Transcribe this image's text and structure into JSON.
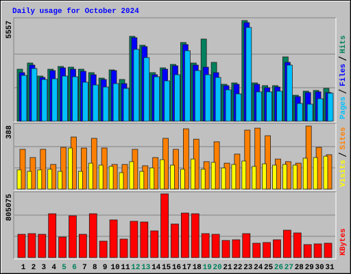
{
  "chart_data": [
    {
      "type": "bar",
      "title": "Daily usage for October 2024",
      "ylim": [
        0,
        5557
      ],
      "yticks": [
        5557
      ],
      "grid": true,
      "series": [
        {
          "name": "Hits",
          "color": "#00805c",
          "values": [
            2873,
            3213,
            2495,
            2873,
            3024,
            2986,
            2873,
            2684,
            2381,
            2835,
            2306,
            4687,
            4196,
            2684,
            2948,
            3137,
            4347,
            3213,
            4536,
            3250,
            2041,
            2117,
            5557,
            2117,
            1966,
            1966,
            3553,
            1436,
            1663,
            1701,
            1814
          ]
        },
        {
          "name": "Files",
          "color": "#0000ff",
          "values": [
            2684,
            3100,
            2419,
            2797,
            2948,
            2873,
            2759,
            2570,
            2306,
            2797,
            2079,
            4612,
            4120,
            2570,
            2873,
            3062,
            4234,
            3100,
            2986,
            2684,
            1966,
            2041,
            5443,
            2041,
            1852,
            1890,
            3250,
            1361,
            1588,
            1625,
            1588
          ]
        },
        {
          "name": "Pages",
          "color": "#00c0ff",
          "values": [
            2533,
            2911,
            2306,
            2344,
            2495,
            2457,
            2155,
            2003,
            1890,
            2079,
            1814,
            3969,
            3515,
            2457,
            2230,
            2570,
            3893,
            2797,
            2570,
            2419,
            1739,
            1512,
            5179,
            1625,
            1625,
            1663,
            3100,
            983,
            945,
            1247,
            1550
          ]
        }
      ]
    },
    {
      "type": "bar",
      "ylim": [
        0,
        388
      ],
      "yticks": [
        388
      ],
      "grid": true,
      "series": [
        {
          "name": "Sites",
          "color": "#ff8000",
          "values": [
            242,
            192,
            242,
            150,
            254,
            317,
            250,
            309,
            250,
            150,
            150,
            242,
            142,
            192,
            309,
            242,
            367,
            304,
            167,
            288,
            158,
            213,
            359,
            371,
            325,
            183,
            167,
            158,
            384,
            254,
            209
          ]
        },
        {
          "name": "Visits",
          "color": "#ffff00",
          "values": [
            117,
            108,
            117,
            121,
            108,
            250,
            108,
            158,
            146,
            138,
            100,
            167,
            108,
            129,
            179,
            146,
            121,
            183,
            121,
            163,
            129,
            150,
            171,
            138,
            154,
            146,
            150,
            146,
            188,
            192,
            200
          ]
        }
      ]
    },
    {
      "type": "bar",
      "ylim": [
        0,
        805075
      ],
      "yticks": [
        805075
      ],
      "grid": true,
      "categories": [
        "1",
        "2",
        "3",
        "4",
        "5",
        "6",
        "7",
        "8",
        "9",
        "10",
        "11",
        "12",
        "13",
        "14",
        "15",
        "16",
        "17",
        "18",
        "19",
        "20",
        "21",
        "22",
        "23",
        "24",
        "25",
        "26",
        "27",
        "28",
        "29",
        "30",
        "31"
      ],
      "category_colors": [
        "#000000",
        "#000000",
        "#000000",
        "#000000",
        "#00805c",
        "#00805c",
        "#000000",
        "#000000",
        "#000000",
        "#000000",
        "#000000",
        "#00805c",
        "#00805c",
        "#000000",
        "#000000",
        "#000000",
        "#000000",
        "#000000",
        "#00805c",
        "#00805c",
        "#000000",
        "#000000",
        "#000000",
        "#000000",
        "#000000",
        "#00805c",
        "#00805c",
        "#000000",
        "#000000",
        "#000000",
        "#000000"
      ],
      "series": [
        {
          "name": "KBytes",
          "color": "#ff0000",
          "values": [
            294338,
            303000,
            294338,
            554048,
            259710,
            528077,
            294338,
            554048,
            207768,
            476135,
            233739,
            458821,
            450164,
            337623,
            805075,
            424193,
            562705,
            554048,
            303000,
            294338,
            216425,
            225082,
            303000,
            181797,
            190454,
            225082,
            346280,
            311652,
            164483,
            173140,
            181797
          ]
        }
      ]
    }
  ]
}
